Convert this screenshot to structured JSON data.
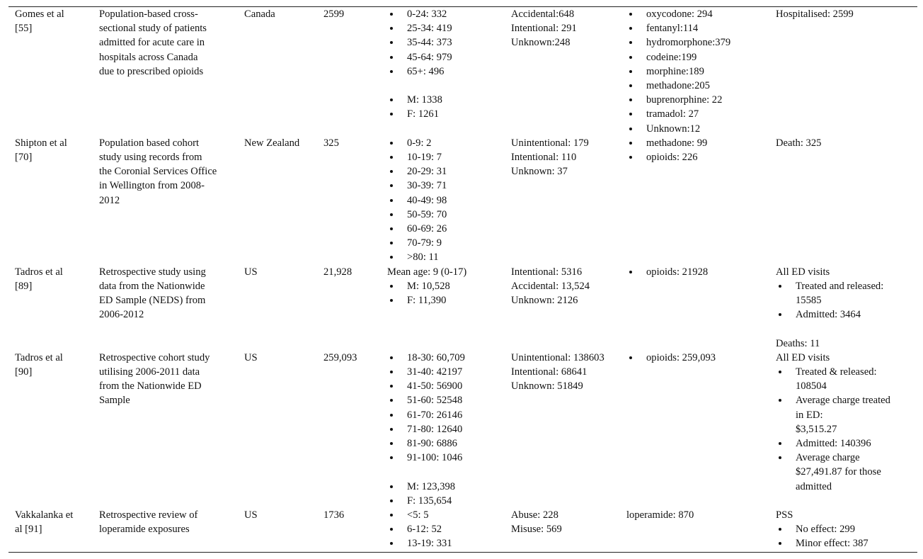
{
  "table": {
    "rows": [
      [
        [
          [
            "Gomes et al",
            "[55]"
          ]
        ],
        [
          [
            "Population-based cross-",
            "sectional study of patients",
            "admitted for acute care in",
            "hospitals across Canada",
            "due to prescribed opioids"
          ]
        ],
        [
          [
            "Canada"
          ]
        ],
        [
          [
            "2599"
          ]
        ],
        [
          [
            [
              "0-24: 332"
            ],
            [
              "25-34: 419"
            ],
            [
              "35-44: 373"
            ],
            [
              "45-64: 979"
            ],
            [
              "65+: 496"
            ]
          ],
          [
            [
              "M: 1338"
            ],
            [
              "F: 1261"
            ]
          ]
        ],
        [
          [
            "Accidental:648",
            "Intentional: 291",
            "Unknown:248"
          ]
        ],
        [
          [
            [
              "oxycodone: 294"
            ],
            [
              "fentanyl:114"
            ],
            [
              "hydromorphone:379"
            ],
            [
              "codeine:199"
            ],
            [
              "morphine:189"
            ],
            [
              "methadone:205"
            ],
            [
              "buprenorphine: 22"
            ],
            [
              "tramadol: 27"
            ],
            [
              "Unknown:12"
            ]
          ]
        ],
        [
          [
            "Hospitalised: 2599"
          ]
        ]
      ],
      [
        [
          [
            "Shipton et al",
            "[70]"
          ]
        ],
        [
          [
            "Population based cohort",
            "study using records from",
            "the Coronial Services Office",
            "in Wellington from 2008-",
            "2012"
          ]
        ],
        [
          [
            "New Zealand"
          ]
        ],
        [
          [
            "325"
          ]
        ],
        [
          [
            [
              "0-9: 2"
            ],
            [
              "10-19: 7"
            ],
            [
              "20-29: 31"
            ],
            [
              "30-39: 71"
            ],
            [
              "40-49: 98"
            ],
            [
              "50-59: 70"
            ],
            [
              "60-69: 26"
            ],
            [
              "70-79: 9"
            ],
            [
              ">80: 11"
            ]
          ]
        ],
        [
          [
            "Unintentional: 179",
            "Intentional: 110",
            "Unknown: 37"
          ]
        ],
        [
          [
            [
              "methadone: 99"
            ],
            [
              "opioids: 226"
            ]
          ]
        ],
        [
          [
            "Death: 325"
          ]
        ]
      ],
      [
        [
          [
            "Tadros et al",
            "[89]"
          ]
        ],
        [
          [
            "Retrospective study using",
            "data from the Nationwide",
            "ED Sample (NEDS) from",
            "2006-2012"
          ]
        ],
        [
          [
            "US"
          ]
        ],
        [
          [
            "21,928"
          ]
        ],
        [
          [
            "Mean age: 9 (0-17)",
            [
              "M: 10,528"
            ],
            [
              "F: 11,390"
            ]
          ]
        ],
        [
          [
            "Intentional: 5316",
            "Accidental: 13,524",
            "Unknown: 2126"
          ]
        ],
        [
          [
            [
              "opioids: 21928"
            ]
          ]
        ],
        [
          [
            "All ED visits",
            [
              "Treated and released:",
              "15585"
            ],
            [
              "Admitted: 3464"
            ]
          ],
          [
            "Deaths: 11"
          ]
        ]
      ],
      [
        [
          [
            "Tadros et al",
            "[90]"
          ]
        ],
        [
          [
            "Retrospective cohort study",
            "utilising 2006-2011 data",
            "from the Nationwide ED",
            "Sample"
          ]
        ],
        [
          [
            "US"
          ]
        ],
        [
          [
            "259,093"
          ]
        ],
        [
          [
            [
              "18-30: 60,709"
            ],
            [
              "31-40: 42197"
            ],
            [
              "41-50: 56900"
            ],
            [
              "51-60: 52548"
            ],
            [
              "61-70: 26146"
            ],
            [
              "71-80: 12640"
            ],
            [
              "81-90: 6886"
            ],
            [
              "91-100: 1046"
            ]
          ],
          [
            [
              "M: 123,398"
            ],
            [
              "F: 135,654"
            ]
          ]
        ],
        [
          [
            "Unintentional: 138603",
            "Intentional: 68641",
            "Unknown: 51849"
          ]
        ],
        [
          [
            [
              "opioids: 259,093"
            ]
          ]
        ],
        [
          [
            "All ED visits",
            [
              "Treated & released:",
              "108504"
            ],
            [
              "Average charge treated",
              "in ED:",
              "$3,515.27"
            ],
            [
              "Admitted: 140396"
            ],
            [
              "Average charge",
              "$27,491.87 for those",
              "admitted"
            ]
          ]
        ]
      ],
      [
        [
          [
            "Vakkalanka et",
            "al [91]"
          ]
        ],
        [
          [
            "Retrospective review of",
            "loperamide exposures"
          ]
        ],
        [
          [
            "US"
          ]
        ],
        [
          [
            "1736"
          ]
        ],
        [
          [
            [
              "<5: 5"
            ],
            [
              "6-12: 52"
            ],
            [
              "13-19: 331"
            ]
          ]
        ],
        [
          [
            "Abuse: 228",
            "Misuse: 569"
          ]
        ],
        [
          [
            "loperamide: 870"
          ]
        ],
        [
          [
            "PSS",
            [
              "No effect: 299"
            ],
            [
              "Minor effect: 387"
            ]
          ]
        ]
      ]
    ]
  }
}
